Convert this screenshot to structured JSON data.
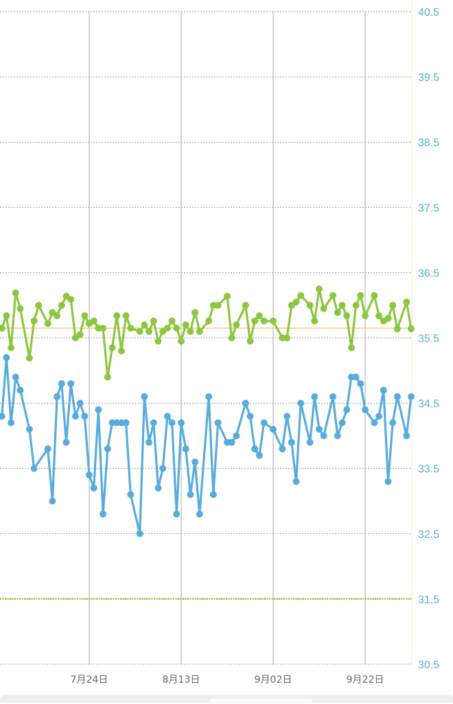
{
  "chart_data": {
    "type": "line",
    "title": "",
    "xlabel": "",
    "ylabel": "",
    "ylim": [
      30.5,
      40.5
    ],
    "yticks": [
      "40.5",
      "39.5",
      "38.5",
      "37.5",
      "36.5",
      "35.5",
      "34.5",
      "33.5",
      "32.5",
      "31.5",
      "30.5"
    ],
    "xticks": [
      {
        "date": "07-24",
        "label": "7月24日"
      },
      {
        "date": "08-13",
        "label": "8月13日"
      },
      {
        "date": "09-02",
        "label": "9月02日"
      },
      {
        "date": "09-22",
        "label": "9月22日"
      }
    ],
    "x_range": [
      "07-05",
      "10-02"
    ],
    "grid": true,
    "reference_lines": [
      {
        "value": 35.65,
        "color": "#f7c98a",
        "style": "solid"
      },
      {
        "value": 31.5,
        "color": "#9ac43a",
        "style": "dotted"
      }
    ],
    "series": [
      {
        "color": "#8dc63f",
        "points": [
          [
            "07-05",
            35.65
          ],
          [
            "07-06",
            35.84
          ],
          [
            "07-07",
            35.35
          ],
          [
            "07-08",
            36.19
          ],
          [
            "07-09",
            35.95
          ],
          [
            "07-11",
            35.19
          ],
          [
            "07-12",
            35.76
          ],
          [
            "07-13",
            36.0
          ],
          [
            "07-15",
            35.72
          ],
          [
            "07-16",
            35.89
          ],
          [
            "07-17",
            35.84
          ],
          [
            "07-18",
            36.0
          ],
          [
            "07-19",
            36.14
          ],
          [
            "07-20",
            36.09
          ],
          [
            "07-21",
            35.5
          ],
          [
            "07-22",
            35.55
          ],
          [
            "07-23",
            35.84
          ],
          [
            "07-24",
            35.72
          ],
          [
            "07-25",
            35.76
          ],
          [
            "07-26",
            35.65
          ],
          [
            "07-27",
            35.65
          ],
          [
            "07-28",
            34.9
          ],
          [
            "07-29",
            35.35
          ],
          [
            "07-30",
            35.84
          ],
          [
            "07-31",
            35.3
          ],
          [
            "08-01",
            35.84
          ],
          [
            "08-02",
            35.65
          ],
          [
            "08-04",
            35.6
          ],
          [
            "08-05",
            35.7
          ],
          [
            "08-06",
            35.6
          ],
          [
            "08-07",
            35.76
          ],
          [
            "08-08",
            35.45
          ],
          [
            "08-09",
            35.6
          ],
          [
            "08-10",
            35.65
          ],
          [
            "08-11",
            35.76
          ],
          [
            "08-12",
            35.65
          ],
          [
            "08-13",
            35.45
          ],
          [
            "08-14",
            35.7
          ],
          [
            "08-15",
            35.6
          ],
          [
            "08-16",
            35.89
          ],
          [
            "08-17",
            35.6
          ],
          [
            "08-19",
            35.76
          ],
          [
            "08-20",
            36.0
          ],
          [
            "08-21",
            36.0
          ],
          [
            "08-23",
            36.14
          ],
          [
            "08-24",
            35.5
          ],
          [
            "08-25",
            35.7
          ],
          [
            "08-27",
            36.0
          ],
          [
            "08-28",
            35.45
          ],
          [
            "08-29",
            35.76
          ],
          [
            "08-30",
            35.84
          ],
          [
            "08-31",
            35.76
          ],
          [
            "09-02",
            35.76
          ],
          [
            "09-04",
            35.5
          ],
          [
            "09-05",
            35.5
          ],
          [
            "09-06",
            36.0
          ],
          [
            "09-07",
            36.05
          ],
          [
            "09-08",
            36.15
          ],
          [
            "09-10",
            36.0
          ],
          [
            "09-11",
            35.76
          ],
          [
            "09-12",
            36.25
          ],
          [
            "09-13",
            35.95
          ],
          [
            "09-15",
            36.15
          ],
          [
            "09-16",
            35.89
          ],
          [
            "09-17",
            36.0
          ],
          [
            "09-18",
            35.84
          ],
          [
            "09-19",
            35.35
          ],
          [
            "09-20",
            36.0
          ],
          [
            "09-21",
            36.15
          ],
          [
            "09-22",
            35.84
          ],
          [
            "09-24",
            36.15
          ],
          [
            "09-25",
            35.84
          ],
          [
            "09-26",
            35.76
          ],
          [
            "09-27",
            35.8
          ],
          [
            "09-28",
            36.0
          ],
          [
            "09-29",
            35.64
          ],
          [
            "10-01",
            36.05
          ],
          [
            "10-02",
            35.64
          ]
        ]
      },
      {
        "color": "#58acdc",
        "points": [
          [
            "07-05",
            34.3
          ],
          [
            "07-06",
            35.2
          ],
          [
            "07-07",
            34.2
          ],
          [
            "07-08",
            34.9
          ],
          [
            "07-09",
            34.7
          ],
          [
            "07-11",
            34.1
          ],
          [
            "07-12",
            33.5
          ],
          [
            "07-15",
            33.8
          ],
          [
            "07-16",
            33.0
          ],
          [
            "07-17",
            34.6
          ],
          [
            "07-18",
            34.8
          ],
          [
            "07-19",
            33.9
          ],
          [
            "07-20",
            34.8
          ],
          [
            "07-21",
            34.3
          ],
          [
            "07-22",
            34.5
          ],
          [
            "07-23",
            34.3
          ],
          [
            "07-24",
            33.4
          ],
          [
            "07-25",
            33.2
          ],
          [
            "07-26",
            34.4
          ],
          [
            "07-27",
            32.8
          ],
          [
            "07-28",
            33.8
          ],
          [
            "07-29",
            34.2
          ],
          [
            "07-30",
            34.2
          ],
          [
            "07-31",
            34.2
          ],
          [
            "08-01",
            34.2
          ],
          [
            "08-02",
            33.1
          ],
          [
            "08-04",
            32.5
          ],
          [
            "08-05",
            34.6
          ],
          [
            "08-06",
            33.9
          ],
          [
            "08-07",
            34.2
          ],
          [
            "08-08",
            33.2
          ],
          [
            "08-09",
            33.5
          ],
          [
            "08-10",
            34.3
          ],
          [
            "08-11",
            34.2
          ],
          [
            "08-12",
            32.8
          ],
          [
            "08-13",
            34.2
          ],
          [
            "08-14",
            33.8
          ],
          [
            "08-15",
            33.1
          ],
          [
            "08-16",
            33.6
          ],
          [
            "08-17",
            32.8
          ],
          [
            "08-19",
            34.6
          ],
          [
            "08-20",
            33.1
          ],
          [
            "08-21",
            34.2
          ],
          [
            "08-23",
            33.9
          ],
          [
            "08-24",
            33.9
          ],
          [
            "08-25",
            34.0
          ],
          [
            "08-27",
            34.5
          ],
          [
            "08-28",
            34.3
          ],
          [
            "08-29",
            33.8
          ],
          [
            "08-30",
            33.7
          ],
          [
            "08-31",
            34.2
          ],
          [
            "09-02",
            34.1
          ],
          [
            "09-04",
            33.8
          ],
          [
            "09-05",
            34.3
          ],
          [
            "09-06",
            33.9
          ],
          [
            "09-07",
            33.3
          ],
          [
            "09-08",
            34.5
          ],
          [
            "09-10",
            33.9
          ],
          [
            "09-11",
            34.6
          ],
          [
            "09-12",
            34.1
          ],
          [
            "09-13",
            34.0
          ],
          [
            "09-15",
            34.6
          ],
          [
            "09-16",
            34.0
          ],
          [
            "09-17",
            34.2
          ],
          [
            "09-18",
            34.4
          ],
          [
            "09-19",
            34.9
          ],
          [
            "09-20",
            34.9
          ],
          [
            "09-21",
            34.8
          ],
          [
            "09-22",
            34.4
          ],
          [
            "09-24",
            34.2
          ],
          [
            "09-25",
            34.3
          ],
          [
            "09-26",
            34.7
          ],
          [
            "09-27",
            33.3
          ],
          [
            "09-28",
            34.2
          ],
          [
            "09-29",
            34.6
          ],
          [
            "10-01",
            34.0
          ],
          [
            "10-02",
            34.6
          ]
        ]
      }
    ]
  }
}
